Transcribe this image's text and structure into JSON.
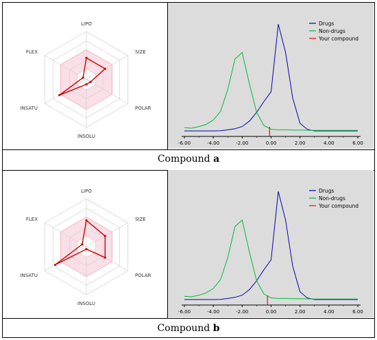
{
  "chart_data": [
    {
      "type": "radar",
      "axes": [
        "LIPO",
        "SIZE",
        "POLAR",
        "INSOLU",
        "INSATU",
        "FLEX"
      ],
      "values": [
        0.45,
        0.45,
        0.1,
        0.1,
        0.65,
        0.08
      ],
      "caption": {
        "prefix": "Compound ",
        "letter": "a"
      }
    },
    {
      "type": "line",
      "x": [
        -6,
        -5.5,
        -5,
        -4.5,
        -4,
        -3.5,
        -3,
        -2.5,
        -2,
        -1.5,
        -1,
        -0.5,
        0,
        0.5,
        1,
        1.5,
        2,
        2.5,
        3,
        3.5,
        4,
        4.5,
        5,
        5.5,
        6
      ],
      "series": [
        {
          "name": "Drugs",
          "color": "#0000aa",
          "values": [
            0,
            0,
            0,
            0,
            0,
            0.002,
            0.01,
            0.02,
            0.04,
            0.09,
            0.17,
            0.27,
            0.36,
            0.98,
            0.72,
            0.3,
            0.07,
            0.015,
            0,
            0,
            0,
            0,
            0,
            0,
            0
          ]
        },
        {
          "name": "Non-drugs",
          "color": "#00bb33",
          "values": [
            0.03,
            0.025,
            0.04,
            0.06,
            0.1,
            0.18,
            0.38,
            0.66,
            0.72,
            0.43,
            0.17,
            0.05,
            0.015,
            0.01,
            0.01,
            0.008,
            0.008,
            0.006,
            0.005,
            0.005,
            0.005,
            0.005,
            0.005,
            0.005,
            0.005
          ]
        },
        {
          "name": "Your compound",
          "color": "#ff0000",
          "marker_x": -0.1
        }
      ],
      "xticks": [
        "-6.00",
        "-4.00",
        "-2.00",
        "0.00",
        "2.00",
        "4.00",
        "6.00"
      ],
      "xlim": [
        -6,
        6
      ],
      "ylim": [
        0,
        1
      ]
    },
    {
      "type": "radar",
      "axes": [
        "LIPO",
        "SIZE",
        "POLAR",
        "INSOLU",
        "INSATU",
        "FLEX"
      ],
      "values": [
        0.55,
        0.45,
        0.45,
        0.05,
        0.75,
        0.1
      ],
      "caption": {
        "prefix": "Compound ",
        "letter": "b"
      }
    },
    {
      "type": "line",
      "x": [
        -6,
        -5.5,
        -5,
        -4.5,
        -4,
        -3.5,
        -3,
        -2.5,
        -2,
        -1.5,
        -1,
        -0.5,
        0,
        0.5,
        1,
        1.5,
        2,
        2.5,
        3,
        3.5,
        4,
        4.5,
        5,
        5.5,
        6
      ],
      "series": [
        {
          "name": "Drugs",
          "color": "#0000aa",
          "values": [
            0,
            0,
            0,
            0,
            0,
            0.002,
            0.01,
            0.02,
            0.04,
            0.09,
            0.17,
            0.27,
            0.36,
            0.98,
            0.72,
            0.3,
            0.07,
            0.015,
            0,
            0,
            0,
            0,
            0,
            0,
            0
          ]
        },
        {
          "name": "Non-drugs",
          "color": "#00bb33",
          "values": [
            0.03,
            0.025,
            0.04,
            0.06,
            0.1,
            0.18,
            0.38,
            0.66,
            0.72,
            0.43,
            0.17,
            0.05,
            0.015,
            0.01,
            0.01,
            0.008,
            0.008,
            0.006,
            0.005,
            0.005,
            0.005,
            0.005,
            0.005,
            0.005,
            0.005
          ]
        },
        {
          "name": "Your compound",
          "color": "#ff0000",
          "marker_x": -0.25
        }
      ],
      "xticks": [
        "-6.00",
        "-4.00",
        "-2.00",
        "0.00",
        "2.00",
        "4.00",
        "6.00"
      ],
      "xlim": [
        -6,
        6
      ],
      "ylim": [
        0,
        1
      ]
    }
  ]
}
